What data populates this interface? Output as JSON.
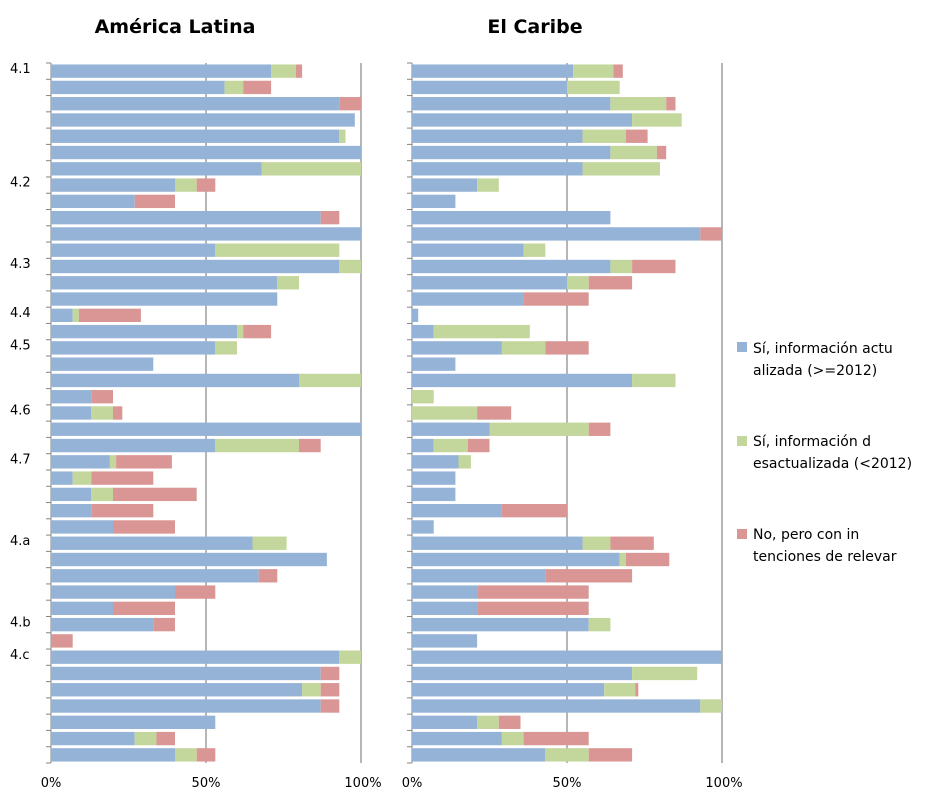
{
  "chart_data": {
    "type": "bar",
    "orientation": "horizontal",
    "stacked": true,
    "xlim": [
      0,
      100
    ],
    "x_ticks": [
      "0%",
      "50%",
      "100%"
    ],
    "legend_position": "right",
    "series": [
      {
        "name": "Sí,  información actualizada (>=2012)",
        "color": "#95b3d7"
      },
      {
        "name": "Sí, información desactualizada (<2012)",
        "color": "#c3d69b"
      },
      {
        "name": "No, pero con intenciones de relevar",
        "color": "#d99694"
      }
    ],
    "group_labels": [
      {
        "label": "4.1",
        "row": 0
      },
      {
        "label": "4.2",
        "row": 7
      },
      {
        "label": "4.3",
        "row": 12
      },
      {
        "label": "4.4",
        "row": 15
      },
      {
        "label": "4.5",
        "row": 17
      },
      {
        "label": "4.6",
        "row": 21
      },
      {
        "label": "4.7",
        "row": 24
      },
      {
        "label": "4.a",
        "row": 29
      },
      {
        "label": "4.b",
        "row": 34
      },
      {
        "label": "4.c",
        "row": 36
      }
    ],
    "panels": [
      {
        "title": "América Latina",
        "rows": [
          [
            71,
            8,
            2
          ],
          [
            56,
            6,
            9
          ],
          [
            93,
            0,
            7
          ],
          [
            98,
            0,
            0
          ],
          [
            93,
            2,
            0
          ],
          [
            100,
            0,
            0
          ],
          [
            68,
            32,
            0
          ],
          [
            40,
            7,
            6
          ],
          [
            27,
            0,
            13
          ],
          [
            87,
            0,
            6
          ],
          [
            100,
            0,
            0
          ],
          [
            53,
            40,
            0
          ],
          [
            93,
            7,
            0
          ],
          [
            73,
            7,
            0
          ],
          [
            73,
            0,
            0
          ],
          [
            7,
            2,
            20
          ],
          [
            60,
            2,
            9
          ],
          [
            53,
            7,
            0
          ],
          [
            33,
            0,
            0
          ],
          [
            80,
            20,
            0
          ],
          [
            13,
            0,
            7
          ],
          [
            13,
            7,
            3
          ],
          [
            100,
            0,
            0
          ],
          [
            53,
            27,
            7
          ],
          [
            19,
            2,
            18
          ],
          [
            7,
            6,
            20
          ],
          [
            13,
            7,
            27
          ],
          [
            13,
            0,
            20
          ],
          [
            20,
            0,
            20
          ],
          [
            65,
            11,
            0
          ],
          [
            89,
            0,
            0
          ],
          [
            67,
            0,
            6
          ],
          [
            40,
            0,
            13
          ],
          [
            20,
            0,
            20
          ],
          [
            33,
            0,
            7
          ],
          [
            0,
            0,
            7
          ],
          [
            93,
            7,
            0
          ],
          [
            87,
            0,
            6
          ],
          [
            81,
            6,
            6
          ],
          [
            87,
            0,
            6
          ],
          [
            53,
            0,
            0
          ],
          [
            27,
            7,
            6
          ],
          [
            40,
            7,
            6
          ]
        ]
      },
      {
        "title": "El Caribe",
        "rows": [
          [
            52,
            13,
            3
          ],
          [
            50,
            17,
            0
          ],
          [
            64,
            18,
            3
          ],
          [
            71,
            16,
            0
          ],
          [
            55,
            14,
            7
          ],
          [
            64,
            15,
            3
          ],
          [
            55,
            25,
            0
          ],
          [
            21,
            7,
            0
          ],
          [
            14,
            0,
            0
          ],
          [
            64,
            0,
            0
          ],
          [
            93,
            0,
            7
          ],
          [
            36,
            7,
            0
          ],
          [
            64,
            7,
            14
          ],
          [
            50,
            7,
            14
          ],
          [
            36,
            0,
            21
          ],
          [
            2,
            0,
            0
          ],
          [
            7,
            31,
            0
          ],
          [
            29,
            14,
            14
          ],
          [
            14,
            0,
            0
          ],
          [
            71,
            14,
            0
          ],
          [
            0,
            7,
            0
          ],
          [
            0,
            21,
            11
          ],
          [
            25,
            32,
            7
          ],
          [
            7,
            11,
            7
          ],
          [
            15,
            4,
            0
          ],
          [
            14,
            0,
            0
          ],
          [
            14,
            0,
            0
          ],
          [
            29,
            0,
            21
          ],
          [
            7,
            0,
            0
          ],
          [
            55,
            9,
            14
          ],
          [
            67,
            2,
            14
          ],
          [
            43,
            0,
            28
          ],
          [
            21,
            0,
            36
          ],
          [
            21,
            0,
            36
          ],
          [
            57,
            7,
            0
          ],
          [
            21,
            0,
            0
          ],
          [
            100,
            0,
            0
          ],
          [
            71,
            21,
            0
          ],
          [
            62,
            10,
            1
          ],
          [
            93,
            7,
            0
          ],
          [
            21,
            7,
            7
          ],
          [
            29,
            7,
            21
          ],
          [
            43,
            14,
            14
          ]
        ]
      }
    ]
  }
}
